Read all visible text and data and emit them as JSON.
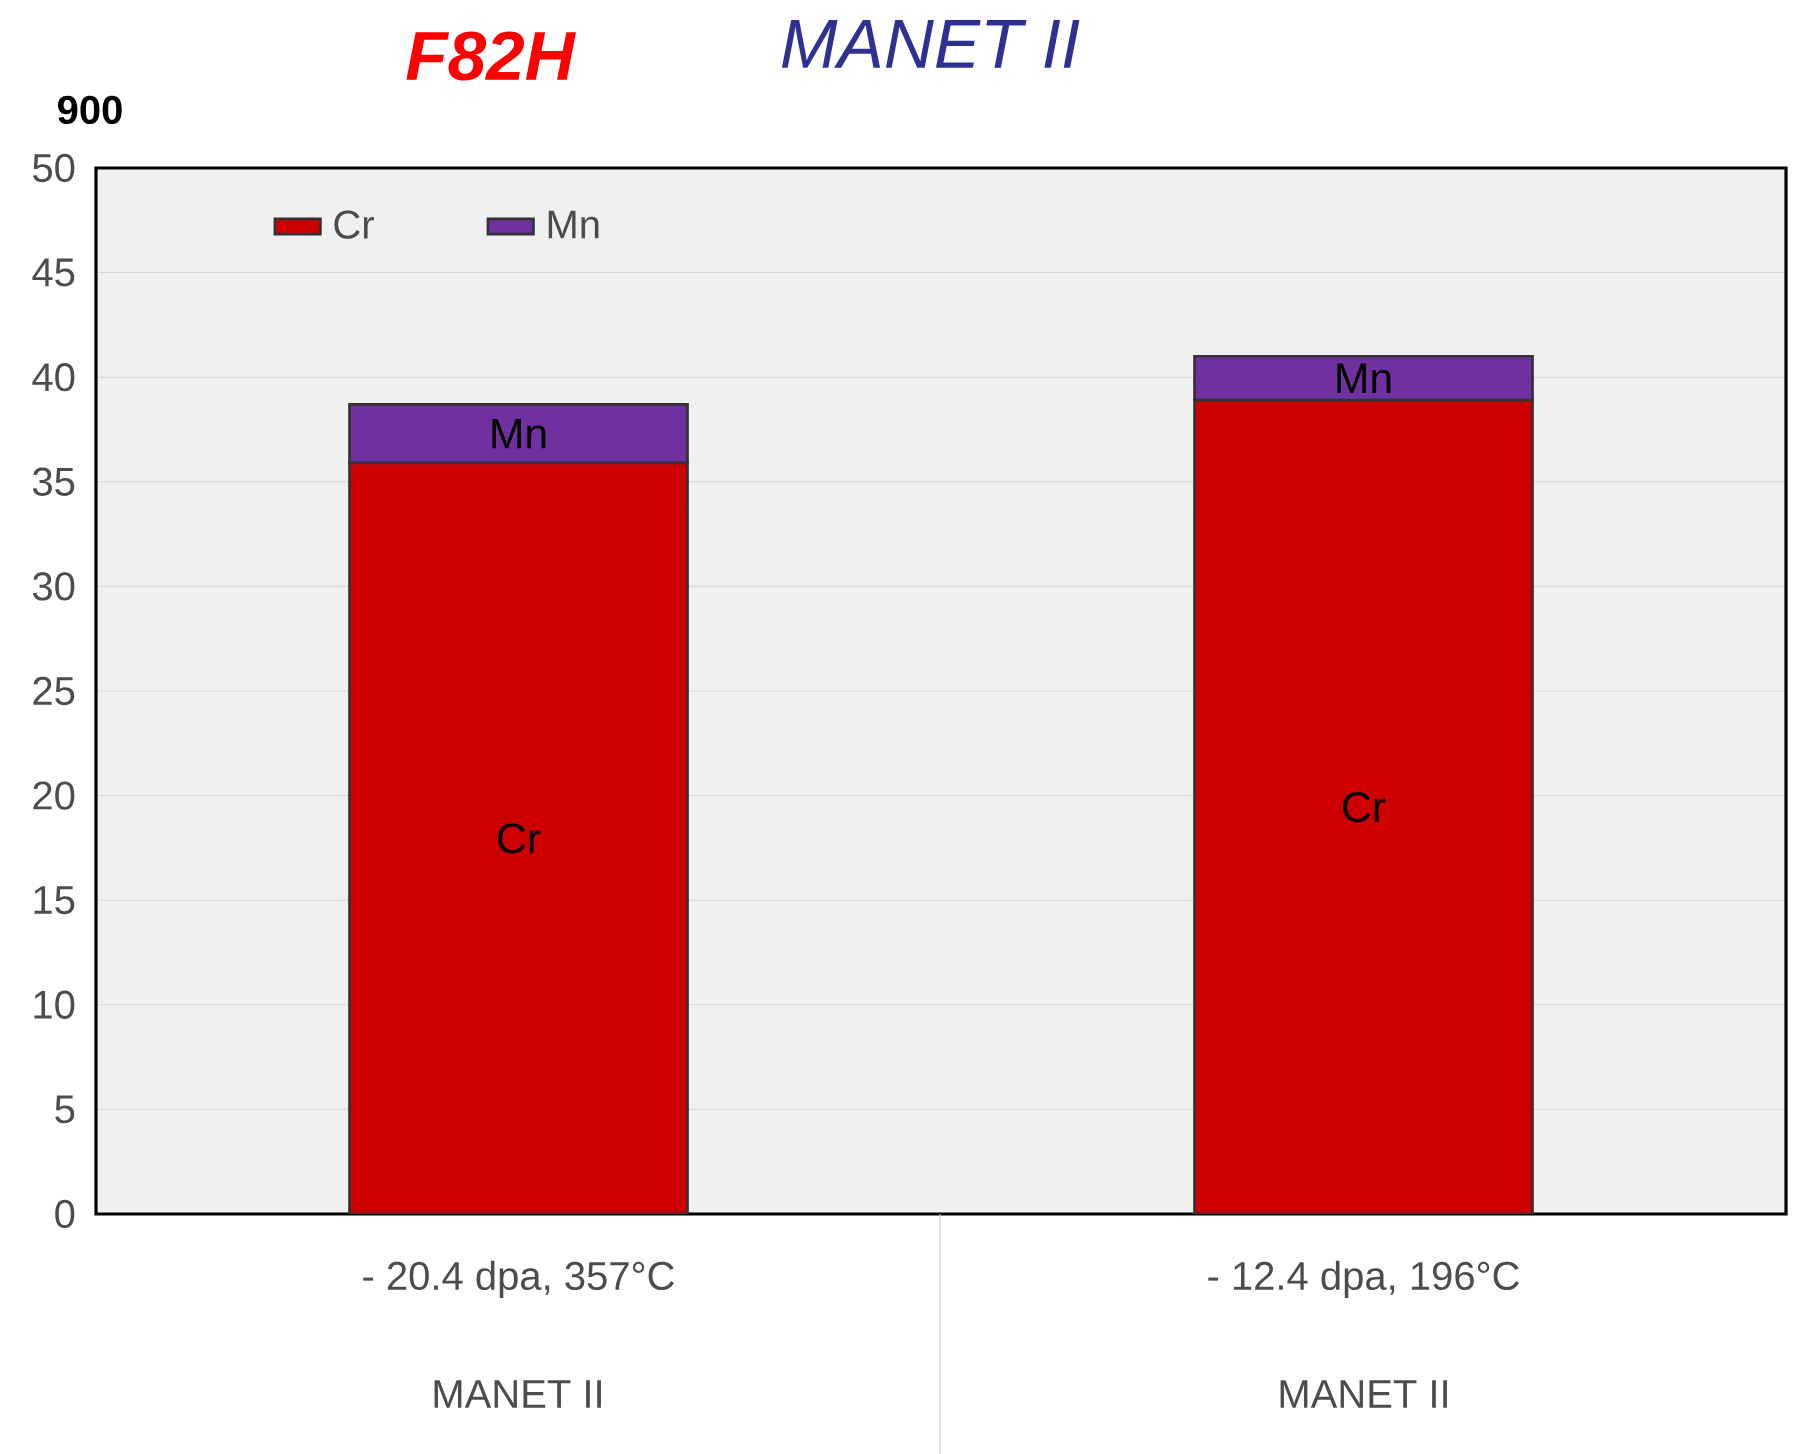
{
  "chart_data": {
    "type": "bar",
    "stacked": true,
    "categories": [
      "- 20.4 dpa, 357°C",
      "- 12.4 dpa, 196°C"
    ],
    "series": [
      {
        "name": "Cr",
        "color": "#cc0000",
        "values": [
          35.9,
          38.9
        ]
      },
      {
        "name": "Mn",
        "color": "#7030a0",
        "values": [
          2.8,
          2.1
        ]
      }
    ],
    "ylim": [
      0,
      50
    ],
    "yticks": [
      0,
      5,
      10,
      15,
      20,
      25,
      30,
      35,
      40,
      45,
      50
    ],
    "grid": "y",
    "legend": "top left",
    "annotations": [
      "Cr",
      "Mn",
      "Cr",
      "Mn",
      "MANET II",
      "MANET II",
      "F82H",
      "MANET II",
      "900"
    ]
  }
}
